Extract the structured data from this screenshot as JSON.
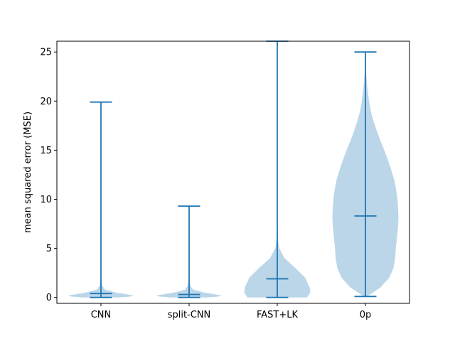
{
  "chart_data": {
    "type": "violin",
    "title": "",
    "xlabel": "",
    "ylabel": "mean squared error (MSE)",
    "ylim": [
      -0.6,
      26.1
    ],
    "yticks": [
      0,
      5,
      10,
      15,
      20,
      25
    ],
    "categories": [
      "CNN",
      "split-CNN",
      "FAST+LK",
      "0p"
    ],
    "colors": {
      "body": "#1f77b4",
      "body_opacity": 0.3,
      "lines": "#1f77b4"
    },
    "grid": false,
    "series": [
      {
        "min": 0.0,
        "median": 0.4,
        "max": 19.9,
        "profile": [
          [
            0.0,
            0.55
          ],
          [
            0.1,
            0.9
          ],
          [
            0.2,
            1.0
          ],
          [
            0.3,
            0.8
          ],
          [
            0.5,
            0.45
          ],
          [
            0.8,
            0.12
          ],
          [
            1.2,
            0.04
          ],
          [
            2.0,
            0.01
          ],
          [
            19.9,
            0.0
          ]
        ]
      },
      {
        "min": 0.0,
        "median": 0.3,
        "max": 9.3,
        "profile": [
          [
            0.0,
            0.55
          ],
          [
            0.1,
            0.9
          ],
          [
            0.2,
            1.0
          ],
          [
            0.3,
            0.8
          ],
          [
            0.5,
            0.45
          ],
          [
            0.8,
            0.12
          ],
          [
            1.2,
            0.04
          ],
          [
            2.0,
            0.01
          ],
          [
            9.3,
            0.0
          ]
        ]
      },
      {
        "min": 0.0,
        "median": 1.9,
        "max": 26.1,
        "profile": [
          [
            0.0,
            0.9
          ],
          [
            0.5,
            1.0
          ],
          [
            1.0,
            0.98
          ],
          [
            2.0,
            0.85
          ],
          [
            3.0,
            0.55
          ],
          [
            4.0,
            0.22
          ],
          [
            5.0,
            0.06
          ],
          [
            6.0,
            0.02
          ],
          [
            8.0,
            0.005
          ],
          [
            26.1,
            0.0
          ]
        ]
      },
      {
        "min": 0.1,
        "median": 8.3,
        "max": 25.0,
        "profile": [
          [
            0.1,
            0.05
          ],
          [
            1.0,
            0.45
          ],
          [
            2.0,
            0.72
          ],
          [
            3.0,
            0.85
          ],
          [
            4.0,
            0.9
          ],
          [
            5.0,
            0.92
          ],
          [
            6.0,
            0.95
          ],
          [
            7.0,
            0.98
          ],
          [
            8.0,
            1.0
          ],
          [
            9.0,
            0.99
          ],
          [
            10.0,
            0.97
          ],
          [
            11.0,
            0.93
          ],
          [
            12.0,
            0.87
          ],
          [
            13.0,
            0.78
          ],
          [
            14.0,
            0.68
          ],
          [
            15.0,
            0.57
          ],
          [
            16.0,
            0.45
          ],
          [
            17.0,
            0.34
          ],
          [
            18.0,
            0.24
          ],
          [
            19.0,
            0.16
          ],
          [
            20.0,
            0.11
          ],
          [
            21.0,
            0.07
          ],
          [
            22.0,
            0.04
          ],
          [
            23.0,
            0.02
          ],
          [
            25.0,
            0.0
          ]
        ]
      }
    ]
  }
}
